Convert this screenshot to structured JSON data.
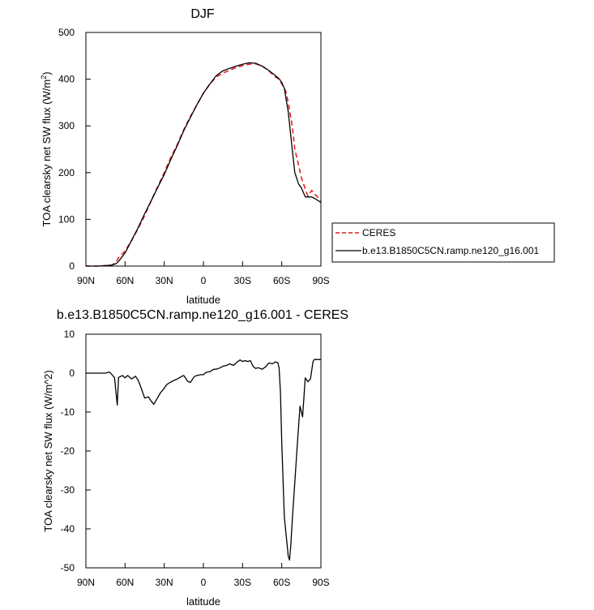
{
  "chart_data": [
    {
      "type": "line",
      "title": "DJF",
      "xlabel": "latitude",
      "ylabel": "TOA clearsky net SW flux (W/m",
      "ylabel_sup": "2",
      "ylabel_end": ")",
      "xlim": [
        -90,
        90
      ],
      "ylim": [
        0,
        500
      ],
      "xticks": [
        -90,
        -60,
        -30,
        0,
        30,
        60,
        90
      ],
      "xticklabels": [
        "90N",
        "60N",
        "30N",
        "0",
        "30S",
        "60S",
        "90S"
      ],
      "yticks": [
        0,
        100,
        200,
        300,
        400,
        500
      ],
      "yticklabels": [
        "0",
        "100",
        "200",
        "300",
        "400",
        "500"
      ],
      "legend_placement": "right, outside",
      "series": [
        {
          "name": "CERES",
          "color": "#e41a1c",
          "dash": "dashed",
          "x": [
            -90,
            -80,
            -70,
            -67,
            -65,
            -60,
            -55,
            -50,
            -45,
            -40,
            -35,
            -30,
            -25,
            -20,
            -15,
            -10,
            -5,
            0,
            5,
            10,
            15,
            20,
            25,
            30,
            35,
            40,
            45,
            50,
            55,
            58,
            60,
            63,
            65,
            68,
            70,
            73,
            75,
            78,
            80,
            83,
            85,
            88,
            90
          ],
          "y": [
            0,
            0,
            2,
            8,
            18,
            32,
            55,
            80,
            108,
            140,
            170,
            200,
            232,
            260,
            292,
            320,
            345,
            370,
            390,
            405,
            413,
            419,
            425,
            429,
            432,
            433,
            428,
            418,
            405,
            400,
            390,
            375,
            350,
            300,
            250,
            215,
            190,
            165,
            150,
            162,
            155,
            146,
            140
          ]
        },
        {
          "name": "b.e13.B1850C5CN.ramp.ne120_g16.001",
          "color": "#000000",
          "dash": "solid",
          "x": [
            -90,
            -80,
            -70,
            -67,
            -65,
            -60,
            -55,
            -50,
            -45,
            -40,
            -35,
            -30,
            -25,
            -20,
            -15,
            -10,
            -5,
            0,
            5,
            10,
            15,
            20,
            25,
            30,
            35,
            40,
            45,
            50,
            55,
            58,
            60,
            62,
            65,
            68,
            70,
            73,
            75,
            78,
            80,
            83,
            85,
            88,
            90
          ],
          "y": [
            0,
            0,
            2,
            5,
            10,
            28,
            55,
            82,
            112,
            140,
            168,
            196,
            228,
            258,
            290,
            318,
            345,
            370,
            390,
            408,
            418,
            423,
            428,
            432,
            435,
            434,
            428,
            419,
            408,
            401,
            393,
            380,
            330,
            250,
            200,
            175,
            168,
            148,
            148,
            148,
            145,
            140,
            136
          ]
        }
      ]
    },
    {
      "type": "line",
      "title": "b.e13.B1850C5CN.ramp.ne120_g16.001 - CERES",
      "xlabel": "latitude",
      "ylabel": "TOA clearsky net SW flux (W/m^2)",
      "xlim": [
        -90,
        90
      ],
      "ylim": [
        -50,
        10
      ],
      "xticks": [
        -90,
        -60,
        -30,
        0,
        30,
        60,
        90
      ],
      "xticklabels": [
        "90N",
        "60N",
        "30N",
        "0",
        "30S",
        "60S",
        "90S"
      ],
      "yticks": [
        -50,
        -40,
        -30,
        -20,
        -10,
        0,
        10
      ],
      "yticklabels": [
        "-50",
        "-40",
        "-30",
        "-20",
        "-10",
        "0",
        "10"
      ],
      "series": [
        {
          "color": "#000000",
          "dash": "solid",
          "x": [
            -90,
            -80,
            -75,
            -72,
            -70,
            -68,
            -66,
            -65,
            -62,
            -60,
            -58,
            -55,
            -52,
            -50,
            -48,
            -45,
            -42,
            -40,
            -38,
            -35,
            -33,
            -31,
            -28,
            -25,
            -22,
            -20,
            -17,
            -15,
            -12,
            -10,
            -7,
            -5,
            -2,
            0,
            2,
            5,
            8,
            10,
            13,
            15,
            18,
            20,
            23,
            25,
            28,
            30,
            32,
            34,
            36,
            38,
            40,
            42,
            45,
            48,
            50,
            53,
            55,
            57,
            58,
            59,
            60,
            62,
            65,
            66,
            67,
            68,
            70,
            72,
            74,
            76,
            78,
            80,
            82,
            84,
            85,
            86,
            88,
            90
          ],
          "y": [
            0,
            0,
            0,
            0.3,
            -0.4,
            -1.2,
            -8.2,
            -1.1,
            -0.6,
            -1.2,
            -0.6,
            -1.5,
            -0.8,
            -1.8,
            -3.5,
            -6.4,
            -6.1,
            -7.2,
            -8,
            -6.3,
            -5.1,
            -4.3,
            -2.9,
            -2.3,
            -1.8,
            -1.5,
            -0.9,
            -0.6,
            -2.1,
            -2.4,
            -0.9,
            -0.6,
            -0.4,
            -0.4,
            0.2,
            0.4,
            1.0,
            1.0,
            1.4,
            1.8,
            2.0,
            2.4,
            2.0,
            2.6,
            3.4,
            3.0,
            3.2,
            3.0,
            3.2,
            1.8,
            1.2,
            1.4,
            1.0,
            1.7,
            2.6,
            2.4,
            2.9,
            2.7,
            1.4,
            -5,
            -18,
            -37,
            -47,
            -48,
            -44,
            -38,
            -28,
            -18,
            -8.5,
            -11.2,
            -1.2,
            -2.2,
            -1.5,
            3.0,
            3.5,
            3.5,
            3.5,
            3.5
          ]
        }
      ]
    }
  ]
}
